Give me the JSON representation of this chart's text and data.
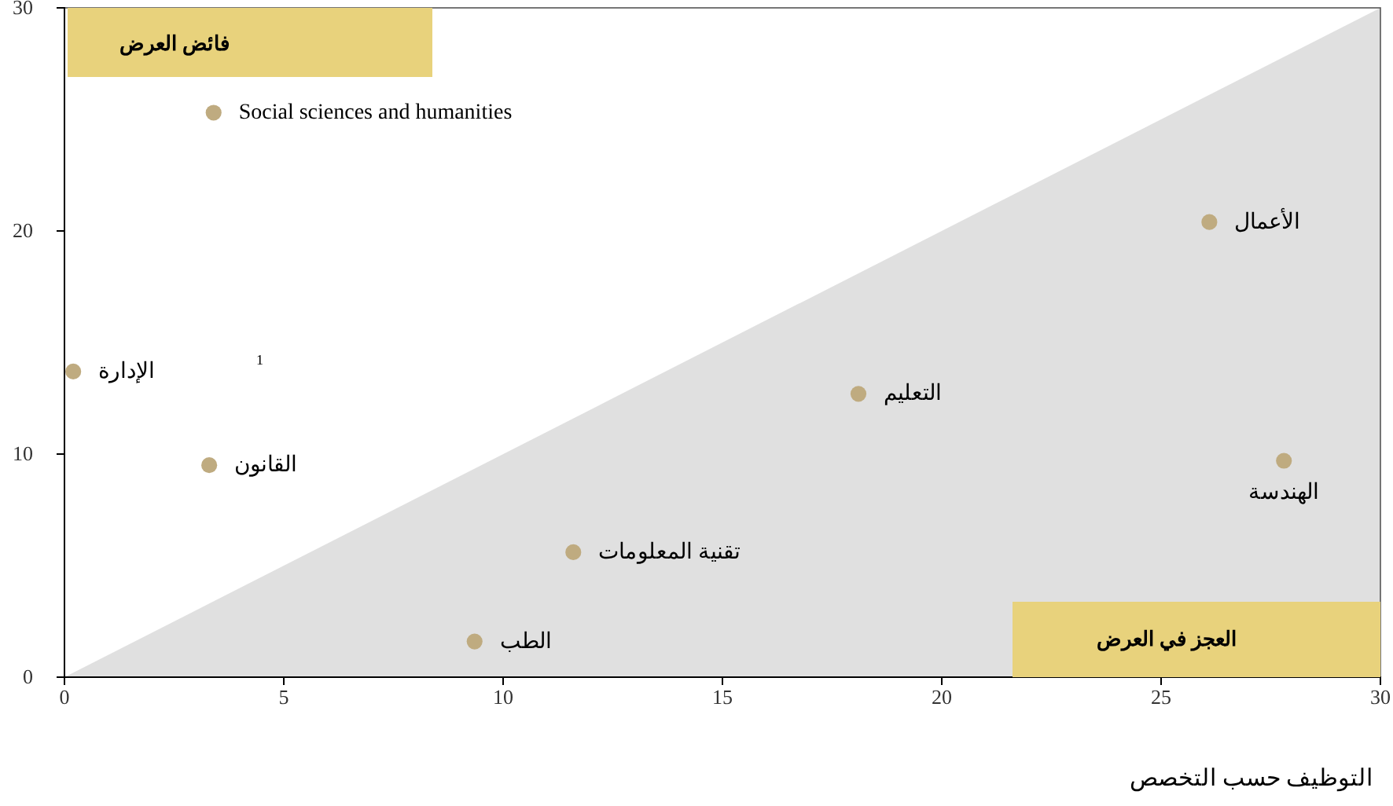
{
  "chart_data": {
    "type": "scatter",
    "xlabel": "التوظيف حسب التخصص",
    "xlim": [
      0,
      30
    ],
    "ylim": [
      0,
      30
    ],
    "xticks": [
      0,
      5,
      10,
      15,
      20,
      25,
      30
    ],
    "yticks": [
      0,
      10,
      20,
      30
    ],
    "grid": false,
    "marker": "circle",
    "series": [
      {
        "type": "area",
        "marker": "none",
        "color": "#e0e0e0",
        "x": [
          0,
          30
        ],
        "values": [
          0,
          30
        ]
      },
      {
        "color": "#bfab80",
        "x": [
          3.4,
          0.2,
          3.3,
          11.6,
          9.35,
          18.1,
          26.1,
          27.8
        ],
        "values": [
          25.3,
          13.7,
          9.5,
          5.6,
          1.6,
          12.7,
          20.4,
          9.7
        ]
      }
    ],
    "annotations": [
      {
        "text": "Social sciences and humanities",
        "x": 3.4,
        "y": 25.3
      },
      {
        "text": "الإدارة",
        "x": 0.2,
        "y": 13.7
      },
      {
        "text": "القانون",
        "x": 3.3,
        "y": 9.5
      },
      {
        "text": "تقنية المعلومات",
        "x": 11.6,
        "y": 5.6
      },
      {
        "text": "الطب",
        "x": 9.35,
        "y": 1.6
      },
      {
        "text": "التعليم",
        "x": 18.1,
        "y": 12.7
      },
      {
        "text": "الأعمال",
        "x": 26.1,
        "y": 20.4
      },
      {
        "text": "الهندسة",
        "x": 27.8,
        "y": 9.7
      },
      "فائض العرض",
      "العجز في العرض",
      "1"
    ]
  }
}
